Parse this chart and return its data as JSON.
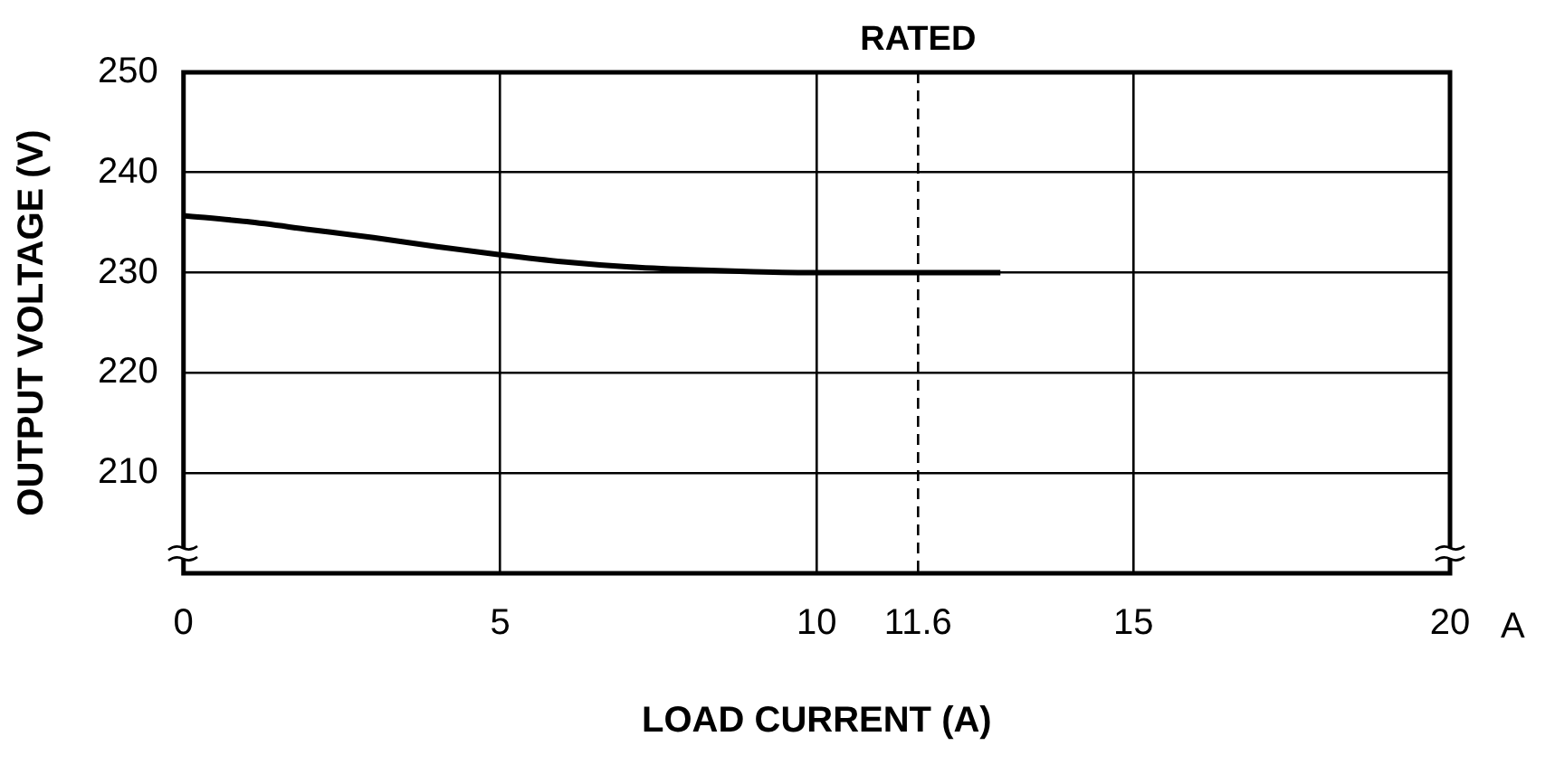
{
  "chart_data": {
    "type": "line",
    "xlabel": "LOAD CURRENT (A)",
    "ylabel": "OUTPUT VOLTAGE (V)",
    "x": [
      0,
      1,
      2,
      3,
      4,
      5,
      6,
      7,
      8,
      9,
      10,
      11,
      12,
      12.9
    ],
    "series": [
      {
        "color": "#000000",
        "values": [
          235.7,
          235.1,
          234.3,
          233.5,
          232.6,
          231.8,
          231.1,
          230.6,
          230.3,
          230.1,
          230,
          230,
          230,
          230
        ]
      }
    ],
    "xlim": [
      0,
      20
    ],
    "xticks": [
      0,
      5,
      10,
      11.6,
      15,
      20
    ],
    "ylim": [
      200,
      250
    ],
    "yticks": [
      {
        "value": 200,
        "label": null
      },
      210,
      220,
      230,
      240,
      250
    ],
    "grid": true,
    "marker": "none",
    "line_style": "solid",
    "ref_lines": [
      {
        "axis": "x",
        "value": 11.6,
        "label": "RATED",
        "line_style": "dashed"
      }
    ],
    "annotations": [
      "A"
    ]
  }
}
